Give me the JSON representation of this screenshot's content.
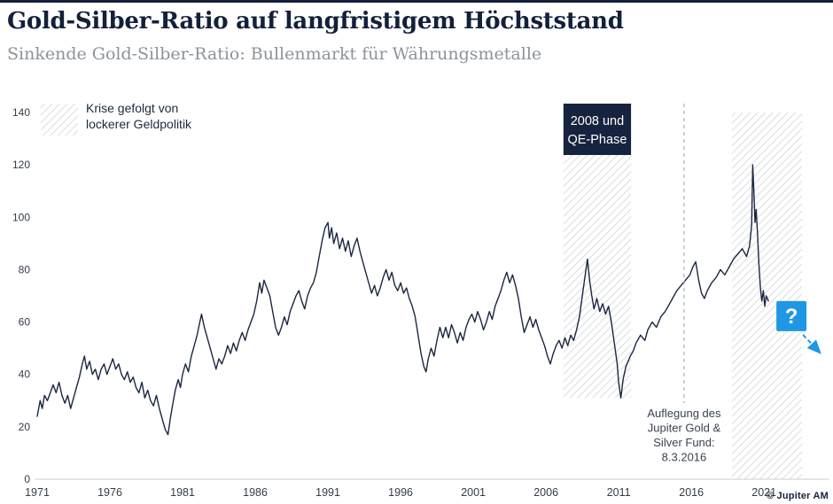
{
  "header": {
    "title": "Gold-Silber-Ratio auf langfristigem Höchststand",
    "subtitle": "Sinkende Gold-Silber-Ratio: Bullenmarkt für Währungsmetalle"
  },
  "legend": {
    "line1": "Krise gefolgt von",
    "line2": "lockerer Geldpolitik"
  },
  "footer": {
    "copyright": "© Jupiter AM"
  },
  "chart_data": {
    "type": "line",
    "title": "Gold-Silber-Ratio auf langfristigem Höchststand",
    "xlabel": "",
    "ylabel": "",
    "xlim": [
      1971,
      2025.5
    ],
    "ylim": [
      0,
      140
    ],
    "x_ticks": [
      1971,
      1976,
      1981,
      1986,
      1991,
      1996,
      2001,
      2006,
      2011,
      2016,
      2021
    ],
    "y_ticks": [
      0,
      20,
      40,
      60,
      80,
      100,
      120,
      140
    ],
    "grid": false,
    "colors": {
      "line": "#1b2740",
      "accent_blue": "#1f97e4",
      "band_label_bg": "#16233f",
      "band_label_text": "#ffffff",
      "hatch": "#d9dce0",
      "vline": "#a9aeb6",
      "axis_text": "#333c49",
      "axis_line": "#c9cdd3",
      "annotation_text": "#3a4352"
    },
    "bands": [
      {
        "name": "2008-qe-crisis",
        "x0": 2007.2,
        "x1": 2011.85,
        "y0": 31,
        "y1": 140,
        "label": [
          "2008 und",
          "QE-Phase"
        ]
      },
      {
        "name": "covid-qe-crisis",
        "x0": 2018.8,
        "x1": 2023.6,
        "y0": 0,
        "y1": 140
      }
    ],
    "vline": {
      "x": 2015.5,
      "label": [
        "Auflegung des",
        "Jupiter Gold &",
        "Silver Fund:",
        "8.3.2016"
      ]
    },
    "question_annotation": {
      "symbol": "?",
      "x": 2021.85,
      "y": 68
    },
    "series": [
      {
        "name": "Gold-Silber-Ratio",
        "points": [
          [
            1971.0,
            24
          ],
          [
            1971.2,
            30
          ],
          [
            1971.35,
            27
          ],
          [
            1971.5,
            32
          ],
          [
            1971.7,
            30
          ],
          [
            1971.9,
            33
          ],
          [
            1972.1,
            36
          ],
          [
            1972.3,
            33
          ],
          [
            1972.5,
            37
          ],
          [
            1972.7,
            32
          ],
          [
            1972.9,
            29
          ],
          [
            1973.1,
            32
          ],
          [
            1973.3,
            27
          ],
          [
            1973.5,
            31
          ],
          [
            1973.7,
            35
          ],
          [
            1973.9,
            39
          ],
          [
            1974.1,
            44
          ],
          [
            1974.25,
            47
          ],
          [
            1974.4,
            42
          ],
          [
            1974.6,
            45
          ],
          [
            1974.8,
            40
          ],
          [
            1975.0,
            42
          ],
          [
            1975.2,
            38
          ],
          [
            1975.4,
            42
          ],
          [
            1975.6,
            44
          ],
          [
            1975.8,
            40
          ],
          [
            1976.0,
            43
          ],
          [
            1976.2,
            46
          ],
          [
            1976.4,
            42
          ],
          [
            1976.6,
            44
          ],
          [
            1976.8,
            40
          ],
          [
            1977.0,
            38
          ],
          [
            1977.2,
            41
          ],
          [
            1977.4,
            37
          ],
          [
            1977.6,
            39
          ],
          [
            1977.8,
            35
          ],
          [
            1978.0,
            33
          ],
          [
            1978.2,
            37
          ],
          [
            1978.4,
            31
          ],
          [
            1978.6,
            34
          ],
          [
            1978.8,
            30
          ],
          [
            1979.0,
            28
          ],
          [
            1979.2,
            32
          ],
          [
            1979.4,
            27
          ],
          [
            1979.6,
            23
          ],
          [
            1979.8,
            19
          ],
          [
            1980.0,
            17
          ],
          [
            1980.15,
            23
          ],
          [
            1980.3,
            28
          ],
          [
            1980.5,
            34
          ],
          [
            1980.7,
            38
          ],
          [
            1980.85,
            35
          ],
          [
            1981.0,
            40
          ],
          [
            1981.2,
            44
          ],
          [
            1981.4,
            41
          ],
          [
            1981.6,
            47
          ],
          [
            1981.8,
            51
          ],
          [
            1982.0,
            55
          ],
          [
            1982.15,
            59
          ],
          [
            1982.3,
            63
          ],
          [
            1982.5,
            58
          ],
          [
            1982.7,
            54
          ],
          [
            1982.9,
            50
          ],
          [
            1983.1,
            46
          ],
          [
            1983.3,
            42
          ],
          [
            1983.5,
            46
          ],
          [
            1983.7,
            44
          ],
          [
            1983.9,
            47
          ],
          [
            1984.1,
            51
          ],
          [
            1984.3,
            48
          ],
          [
            1984.5,
            52
          ],
          [
            1984.7,
            49
          ],
          [
            1984.9,
            53
          ],
          [
            1985.1,
            56
          ],
          [
            1985.3,
            53
          ],
          [
            1985.5,
            57
          ],
          [
            1985.7,
            60
          ],
          [
            1985.9,
            63
          ],
          [
            1986.1,
            68
          ],
          [
            1986.3,
            75
          ],
          [
            1986.45,
            71
          ],
          [
            1986.6,
            76
          ],
          [
            1986.8,
            73
          ],
          [
            1987.0,
            70
          ],
          [
            1987.2,
            64
          ],
          [
            1987.4,
            58
          ],
          [
            1987.6,
            55
          ],
          [
            1987.8,
            58
          ],
          [
            1988.0,
            62
          ],
          [
            1988.2,
            59
          ],
          [
            1988.4,
            64
          ],
          [
            1988.6,
            67
          ],
          [
            1988.8,
            70
          ],
          [
            1989.0,
            72
          ],
          [
            1989.2,
            68
          ],
          [
            1989.4,
            65
          ],
          [
            1989.6,
            70
          ],
          [
            1989.8,
            73
          ],
          [
            1990.0,
            75
          ],
          [
            1990.2,
            79
          ],
          [
            1990.4,
            85
          ],
          [
            1990.6,
            91
          ],
          [
            1990.8,
            96
          ],
          [
            1991.0,
            98
          ],
          [
            1991.1,
            92
          ],
          [
            1991.25,
            96
          ],
          [
            1991.4,
            90
          ],
          [
            1991.6,
            94
          ],
          [
            1991.8,
            88
          ],
          [
            1992.0,
            92
          ],
          [
            1992.2,
            87
          ],
          [
            1992.4,
            91
          ],
          [
            1992.6,
            85
          ],
          [
            1992.8,
            89
          ],
          [
            1993.0,
            92
          ],
          [
            1993.2,
            87
          ],
          [
            1993.4,
            83
          ],
          [
            1993.6,
            79
          ],
          [
            1993.8,
            75
          ],
          [
            1994.0,
            71
          ],
          [
            1994.2,
            74
          ],
          [
            1994.4,
            70
          ],
          [
            1994.6,
            73
          ],
          [
            1994.8,
            77
          ],
          [
            1995.0,
            80
          ],
          [
            1995.2,
            76
          ],
          [
            1995.4,
            79
          ],
          [
            1995.6,
            74
          ],
          [
            1995.8,
            72
          ],
          [
            1996.0,
            75
          ],
          [
            1996.2,
            71
          ],
          [
            1996.4,
            73
          ],
          [
            1996.6,
            69
          ],
          [
            1996.8,
            66
          ],
          [
            1997.0,
            62
          ],
          [
            1997.2,
            55
          ],
          [
            1997.4,
            48
          ],
          [
            1997.6,
            43
          ],
          [
            1997.75,
            41
          ],
          [
            1997.9,
            46
          ],
          [
            1998.1,
            50
          ],
          [
            1998.3,
            47
          ],
          [
            1998.5,
            53
          ],
          [
            1998.7,
            58
          ],
          [
            1998.9,
            54
          ],
          [
            1999.1,
            58
          ],
          [
            1999.3,
            54
          ],
          [
            1999.5,
            59
          ],
          [
            1999.7,
            56
          ],
          [
            1999.9,
            52
          ],
          [
            2000.1,
            56
          ],
          [
            2000.3,
            53
          ],
          [
            2000.5,
            58
          ],
          [
            2000.7,
            61
          ],
          [
            2000.9,
            63
          ],
          [
            2001.1,
            60
          ],
          [
            2001.3,
            64
          ],
          [
            2001.5,
            61
          ],
          [
            2001.7,
            57
          ],
          [
            2001.9,
            60
          ],
          [
            2002.1,
            64
          ],
          [
            2002.3,
            61
          ],
          [
            2002.5,
            66
          ],
          [
            2002.7,
            69
          ],
          [
            2002.9,
            72
          ],
          [
            2003.1,
            76
          ],
          [
            2003.3,
            79
          ],
          [
            2003.5,
            75
          ],
          [
            2003.7,
            78
          ],
          [
            2003.9,
            74
          ],
          [
            2004.1,
            69
          ],
          [
            2004.3,
            62
          ],
          [
            2004.5,
            56
          ],
          [
            2004.7,
            59
          ],
          [
            2004.9,
            62
          ],
          [
            2005.1,
            58
          ],
          [
            2005.3,
            61
          ],
          [
            2005.5,
            57
          ],
          [
            2005.7,
            54
          ],
          [
            2005.9,
            51
          ],
          [
            2006.1,
            47
          ],
          [
            2006.3,
            44
          ],
          [
            2006.5,
            48
          ],
          [
            2006.7,
            51
          ],
          [
            2006.9,
            53
          ],
          [
            2007.1,
            50
          ],
          [
            2007.3,
            54
          ],
          [
            2007.5,
            51
          ],
          [
            2007.7,
            55
          ],
          [
            2007.9,
            53
          ],
          [
            2008.1,
            57
          ],
          [
            2008.3,
            62
          ],
          [
            2008.5,
            70
          ],
          [
            2008.7,
            78
          ],
          [
            2008.85,
            84
          ],
          [
            2009.0,
            76
          ],
          [
            2009.15,
            70
          ],
          [
            2009.3,
            65
          ],
          [
            2009.5,
            69
          ],
          [
            2009.7,
            64
          ],
          [
            2009.9,
            67
          ],
          [
            2010.1,
            63
          ],
          [
            2010.3,
            66
          ],
          [
            2010.5,
            60
          ],
          [
            2010.7,
            52
          ],
          [
            2010.9,
            44
          ],
          [
            2011.0,
            37
          ],
          [
            2011.15,
            31
          ],
          [
            2011.3,
            38
          ],
          [
            2011.5,
            43
          ],
          [
            2011.8,
            47
          ],
          [
            2012.0,
            49
          ],
          [
            2012.2,
            52
          ],
          [
            2012.5,
            55
          ],
          [
            2012.8,
            53
          ],
          [
            2013.0,
            57
          ],
          [
            2013.3,
            60
          ],
          [
            2013.6,
            58
          ],
          [
            2013.9,
            62
          ],
          [
            2014.2,
            64
          ],
          [
            2014.5,
            67
          ],
          [
            2014.8,
            70
          ],
          [
            2015.0,
            72
          ],
          [
            2015.3,
            74
          ],
          [
            2015.6,
            76
          ],
          [
            2015.9,
            78
          ],
          [
            2016.1,
            81
          ],
          [
            2016.3,
            83
          ],
          [
            2016.5,
            76
          ],
          [
            2016.7,
            71
          ],
          [
            2016.9,
            69
          ],
          [
            2017.1,
            72
          ],
          [
            2017.4,
            75
          ],
          [
            2017.7,
            77
          ],
          [
            2018.0,
            80
          ],
          [
            2018.3,
            78
          ],
          [
            2018.6,
            81
          ],
          [
            2018.9,
            84
          ],
          [
            2019.2,
            86
          ],
          [
            2019.5,
            88
          ],
          [
            2019.8,
            85
          ],
          [
            2020.0,
            89
          ],
          [
            2020.15,
            97
          ],
          [
            2020.22,
            120
          ],
          [
            2020.3,
            110
          ],
          [
            2020.38,
            98
          ],
          [
            2020.46,
            103
          ],
          [
            2020.55,
            94
          ],
          [
            2020.65,
            82
          ],
          [
            2020.75,
            73
          ],
          [
            2020.85,
            68
          ],
          [
            2020.95,
            72
          ],
          [
            2021.05,
            66
          ],
          [
            2021.15,
            70
          ],
          [
            2021.3,
            68
          ]
        ]
      }
    ]
  }
}
